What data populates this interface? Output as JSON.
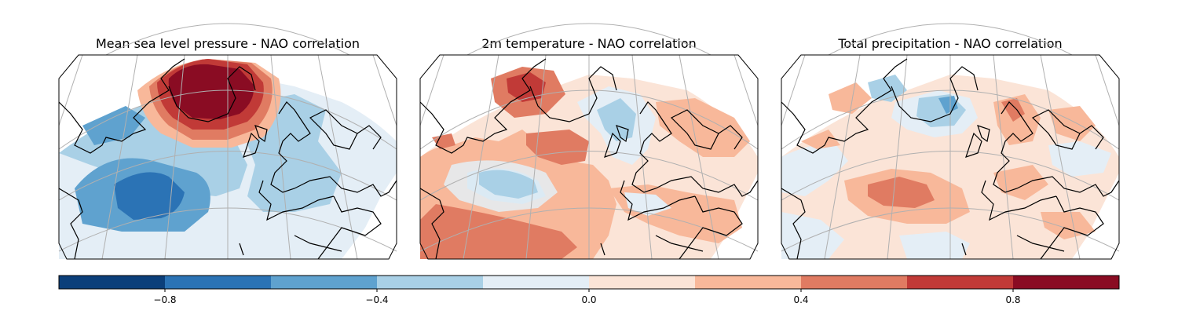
{
  "panels": [
    {
      "id": "mslp",
      "title": "Mean sea level pressure - NAO correlation"
    },
    {
      "id": "t2m",
      "title": "2m temperature - NAO correlation"
    },
    {
      "id": "tp",
      "title": "Total precipitation - NAO correlation"
    }
  ],
  "colorbar": {
    "range": [
      -1.0,
      1.0
    ],
    "step": 0.2,
    "colors": [
      "#0b3f7a",
      "#2b73b5",
      "#5fa2cf",
      "#a9d0e6",
      "#e4eef6",
      "#fbe4d7",
      "#f8b89a",
      "#e07b62",
      "#c13a37",
      "#8a0c23"
    ],
    "tick_values": [
      -0.8,
      -0.4,
      0.0,
      0.4,
      0.8
    ],
    "tick_labels": [
      "−0.8",
      "−0.4",
      "0.0",
      "0.4",
      "0.8"
    ]
  },
  "map_style": {
    "coastline_color": "#000000",
    "gridline_color": "#b0b0b0",
    "projection": "lambert conformal, North Atlantic"
  }
}
